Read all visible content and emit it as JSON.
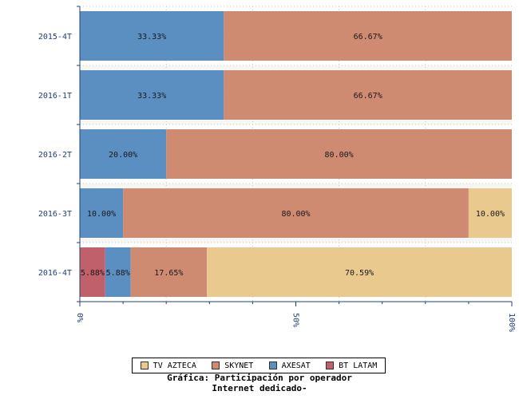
{
  "chart_data": {
    "type": "bar",
    "orientation": "horizontal",
    "stacked": "percent",
    "title": "Gráfica: Participación por operador",
    "subtitle": "Internet dedicado-",
    "categories": [
      "2015-4T",
      "2016-1T",
      "2016-2T",
      "2016-3T",
      "2016-4T"
    ],
    "series": [
      {
        "name": "BT LATAM",
        "color": "#c0606a",
        "values": [
          0,
          0,
          0,
          0,
          5.88
        ],
        "labels": [
          "",
          "",
          "",
          "",
          "5.88%"
        ]
      },
      {
        "name": "AXESAT",
        "color": "#5b8fc1",
        "values": [
          33.33,
          33.33,
          20.0,
          10.0,
          5.88
        ],
        "labels": [
          "33.33%",
          "33.33%",
          "20.00%",
          "10.00%",
          "5.88%"
        ]
      },
      {
        "name": "SKYNET",
        "color": "#cf8a72",
        "values": [
          66.67,
          66.67,
          80.0,
          80.0,
          17.65
        ],
        "labels": [
          "66.67%",
          "66.67%",
          "80.00%",
          "80.00%",
          "17.65%"
        ]
      },
      {
        "name": "TV AZTECA",
        "color": "#e9c98d",
        "values": [
          0,
          0,
          0,
          10.0,
          70.59
        ],
        "labels": [
          "",
          "",
          "",
          "10.00%",
          "70.59%"
        ]
      }
    ],
    "xlim": [
      0,
      100
    ],
    "xticks": [
      "0%",
      "50%",
      "100%"
    ],
    "grid": true,
    "legend_position": "bottom",
    "legend_order": [
      "TV AZTECA",
      "SKYNET",
      "AXESAT",
      "BT LATAM"
    ]
  }
}
